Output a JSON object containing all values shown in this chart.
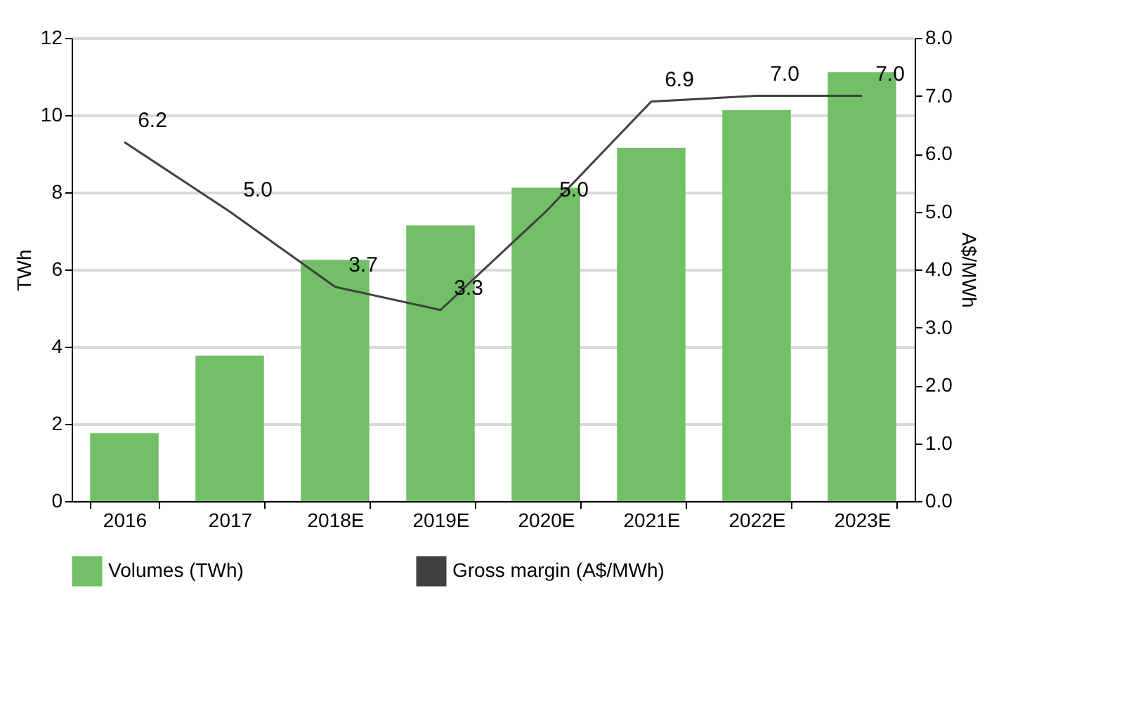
{
  "chart_data": {
    "type": "bar",
    "categories": [
      "2016",
      "2017",
      "2018E",
      "2019E",
      "2020E",
      "2021E",
      "2022E",
      "2023E"
    ],
    "ylabel": "TWh",
    "y2label": "A$/MWh",
    "ylim": [
      0,
      12
    ],
    "yticks": [
      0,
      2,
      4,
      6,
      8,
      10,
      12
    ],
    "y2lim": [
      0,
      8
    ],
    "y2ticks": [
      {
        "value": 0,
        "label": "0.0"
      },
      {
        "value": 1,
        "label": "1.0"
      },
      {
        "value": 2,
        "label": "2.0"
      },
      {
        "value": 3,
        "label": "3.0"
      },
      {
        "value": 4,
        "label": "4.0"
      },
      {
        "value": 5,
        "label": "5.0"
      },
      {
        "value": 6,
        "label": "6.0"
      },
      {
        "value": 7,
        "label": "7.0"
      },
      {
        "value": 8,
        "label": "8.0"
      }
    ],
    "grid": "y",
    "legend": "bottom",
    "series": [
      {
        "name": "Volumes (TWh)",
        "color": "#72bf67",
        "values": [
          1.76,
          3.77,
          6.25,
          7.14,
          8.12,
          9.15,
          10.13,
          11.11
        ]
      },
      {
        "name": "Gross margin (A$/MWh)",
        "type": "line",
        "axis": "y2",
        "color": "#404040",
        "values": [
          6.2,
          5.0,
          3.7,
          3.3,
          5.0,
          6.9,
          7.0,
          7.0
        ],
        "value_labels": [
          "6.2",
          "5.0",
          "3.7",
          "3.3",
          "5.0",
          "6.9",
          "7.0",
          "7.0"
        ]
      }
    ]
  }
}
